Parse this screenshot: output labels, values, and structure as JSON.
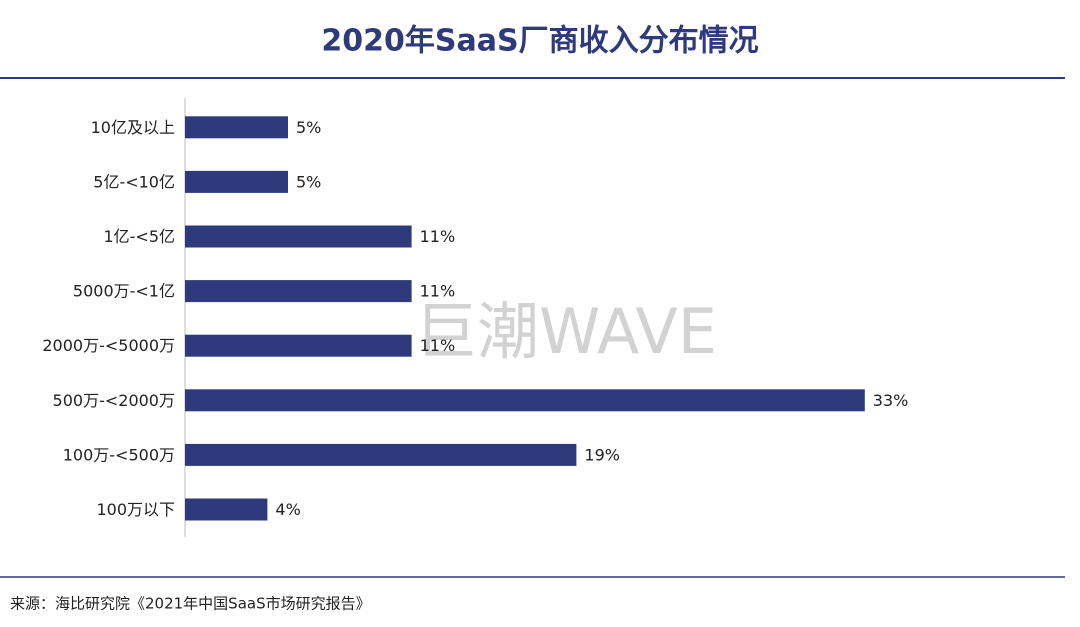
{
  "chart_data": {
    "type": "bar",
    "orientation": "horizontal",
    "title": "2020年SaaS厂商收入分布情况",
    "categories": [
      "10亿及以上",
      "5亿-<10亿",
      "1亿-<5亿",
      "5000万-<1亿",
      "2000万-<5000万",
      "500万-<2000万",
      "100万-<500万",
      "100万以下"
    ],
    "values": [
      5,
      5,
      11,
      11,
      11,
      33,
      19,
      4
    ],
    "value_labels": [
      "5%",
      "5%",
      "11%",
      "11%",
      "11%",
      "33%",
      "19%",
      "4%"
    ],
    "color": "#2e3a7c",
    "watermark": "巨潮WAVE",
    "source": "来源：海比研究院《2021年中国SaaS市场研究报告》"
  }
}
